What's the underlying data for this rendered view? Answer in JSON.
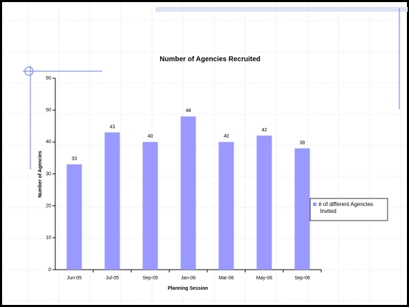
{
  "chart_data": {
    "type": "bar",
    "title": "Number of Agencies Recruited",
    "x_label": "Planning Session",
    "y_label": "Number of Agencies",
    "categories": [
      "Jun-05",
      "Jul-05",
      "Sep-05",
      "Jan-06",
      "Mar-06",
      "May-06",
      "Sep-06"
    ],
    "series": [
      {
        "name": "# of different Agencies Invited",
        "color": "#9999ff",
        "values": [
          33,
          43,
          40,
          48,
          40,
          42,
          38
        ]
      }
    ],
    "ylim": [
      0,
      60
    ],
    "yticks": [
      0,
      10,
      20,
      30,
      40,
      50,
      60
    ],
    "legend": "right"
  }
}
